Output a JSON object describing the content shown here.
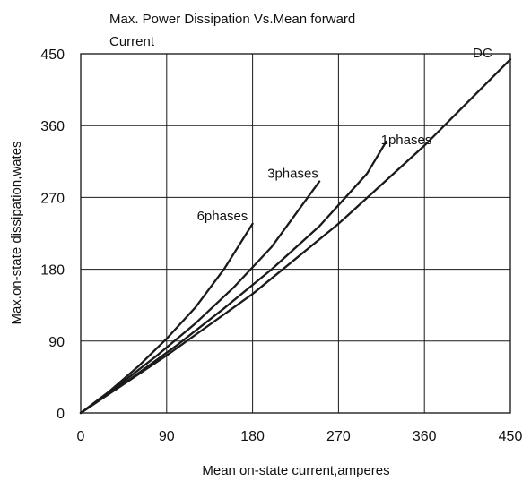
{
  "chart_data": {
    "type": "line",
    "title_lines": [
      "Max. Power Dissipation Vs.Mean forward",
      "Current"
    ],
    "xlabel": "Mean on-state current,amperes",
    "ylabel": "Max.on-state dissipation,wates",
    "xlim": [
      0,
      450
    ],
    "ylim": [
      0,
      450
    ],
    "x_ticks": [
      0,
      90,
      180,
      270,
      360,
      450
    ],
    "y_ticks": [
      0,
      90,
      180,
      270,
      360,
      450
    ],
    "grid": true,
    "series": [
      {
        "name": "6phases",
        "x": [
          0,
          30,
          60,
          90,
          120,
          150,
          180
        ],
        "y": [
          0,
          27,
          58,
          93,
          132,
          180,
          237
        ]
      },
      {
        "name": "3phases",
        "x": [
          0,
          40,
          80,
          120,
          160,
          200,
          250
        ],
        "y": [
          0,
          35,
          72,
          112,
          157,
          208,
          290
        ]
      },
      {
        "name": "1phases",
        "x": [
          0,
          50,
          100,
          150,
          200,
          250,
          300,
          320
        ],
        "y": [
          0,
          41,
          84,
          131,
          180,
          234,
          300,
          340
        ]
      },
      {
        "name": "DC",
        "x": [
          0,
          90,
          180,
          270,
          360,
          450
        ],
        "y": [
          0,
          72,
          149,
          237,
          335,
          443
        ]
      }
    ]
  }
}
